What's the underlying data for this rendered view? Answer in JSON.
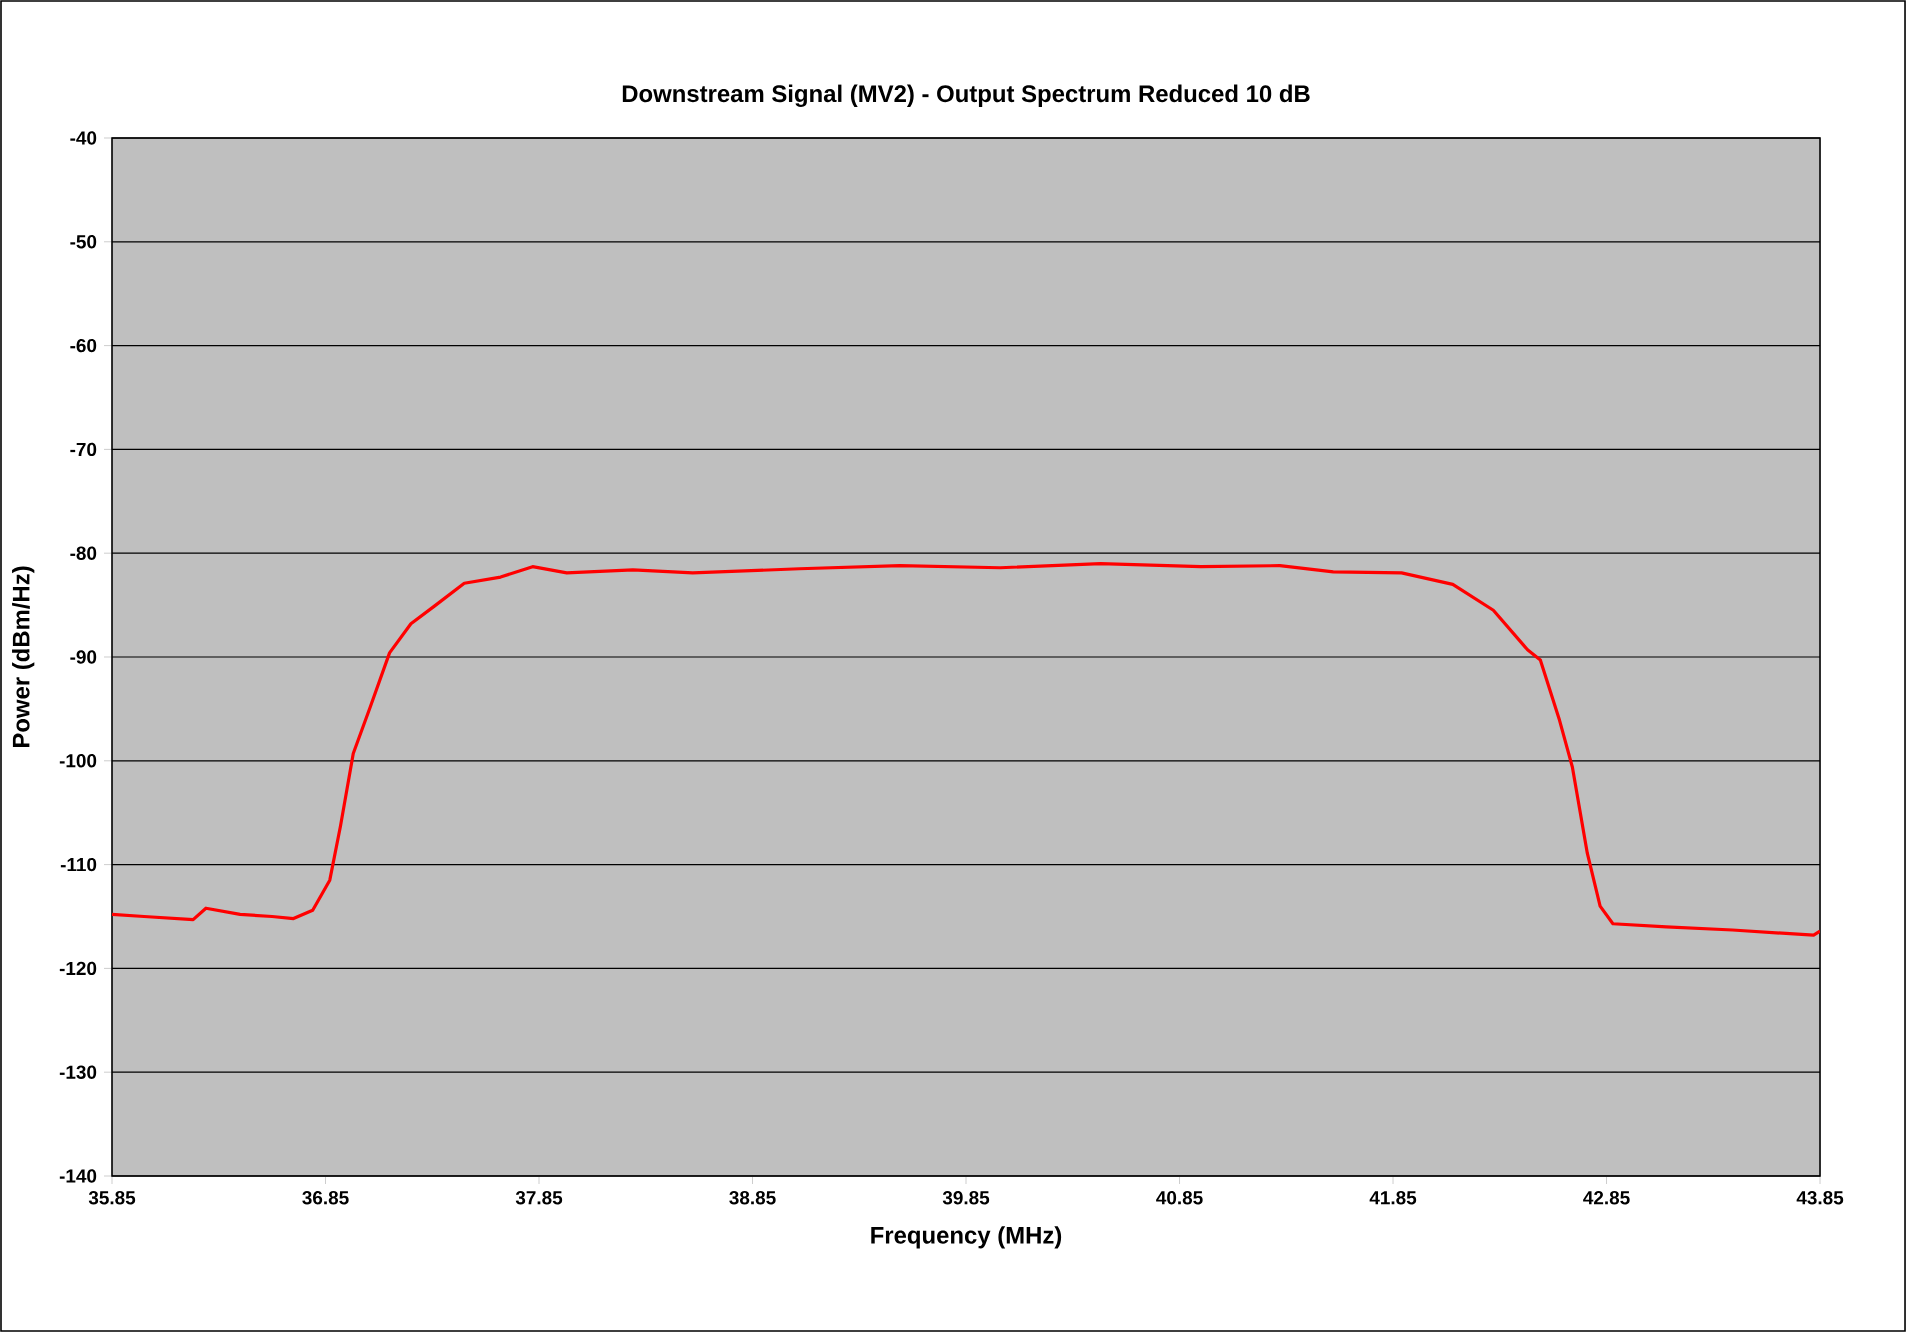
{
  "chart_data": {
    "type": "line",
    "title": "Downstream Signal (MV2) - Output Spectrum Reduced 10 dB",
    "xlabel": "Frequency (MHz)",
    "ylabel": "Power (dBm/Hz)",
    "xlim": [
      35.85,
      43.85
    ],
    "ylim": [
      -140,
      -40
    ],
    "xticks": [
      35.85,
      36.85,
      37.85,
      38.85,
      39.85,
      40.85,
      41.85,
      42.85,
      43.85
    ],
    "yticks": [
      -140,
      -130,
      -120,
      -110,
      -100,
      -90,
      -80,
      -70,
      -60,
      -50,
      -40
    ],
    "grid": "y",
    "marker": "none",
    "line_style": "solid",
    "series": [
      {
        "color": "#ff0000",
        "x": [
          35.85,
          36.0,
          36.23,
          36.29,
          36.45,
          36.6,
          36.7,
          36.79,
          36.87,
          36.92,
          36.98,
          37.06,
          37.15,
          37.25,
          37.36,
          37.5,
          37.67,
          37.82,
          37.98,
          38.29,
          38.57,
          39.07,
          39.54,
          40.01,
          40.48,
          40.95,
          41.32,
          41.57,
          41.89,
          42.13,
          42.32,
          42.48,
          42.54,
          42.63,
          42.69,
          42.76,
          42.82,
          42.88,
          43.13,
          43.44,
          43.82,
          43.85
        ],
        "values": [
          -114.8,
          -115.0,
          -115.3,
          -114.2,
          -114.8,
          -115.0,
          -115.2,
          -114.4,
          -111.5,
          -106.3,
          -99.3,
          -94.8,
          -89.6,
          -86.8,
          -85.1,
          -82.9,
          -82.3,
          -81.3,
          -81.9,
          -81.6,
          -81.9,
          -81.5,
          -81.2,
          -81.4,
          -81.0,
          -81.3,
          -81.2,
          -81.8,
          -81.9,
          -83.0,
          -85.5,
          -89.3,
          -90.3,
          -96.1,
          -100.6,
          -108.9,
          -114.0,
          -115.7,
          -116.0,
          -116.3,
          -116.8,
          -116.4
        ]
      }
    ]
  }
}
